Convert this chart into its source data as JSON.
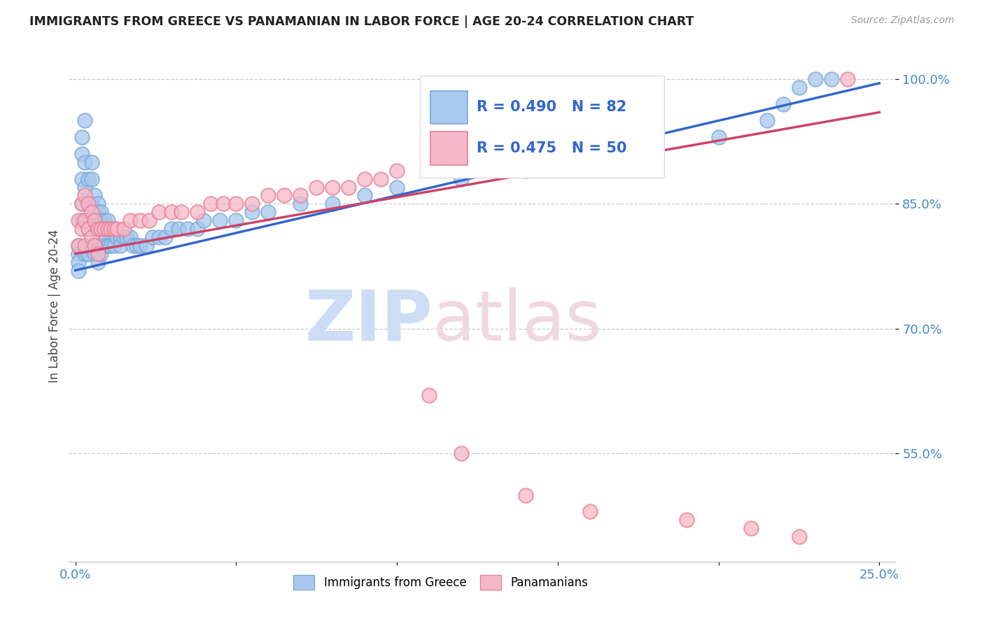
{
  "title": "IMMIGRANTS FROM GREECE VS PANAMANIAN IN LABOR FORCE | AGE 20-24 CORRELATION CHART",
  "source": "Source: ZipAtlas.com",
  "ylabel": "In Labor Force | Age 20-24",
  "xlim": [
    -0.002,
    0.255
  ],
  "ylim": [
    0.42,
    1.035
  ],
  "xticks": [
    0.0,
    0.05,
    0.1,
    0.15,
    0.2,
    0.25
  ],
  "xticklabels": [
    "0.0%",
    "",
    "",
    "",
    "",
    "25.0%"
  ],
  "yticks": [
    0.55,
    0.7,
    0.85,
    1.0
  ],
  "yticklabels": [
    "55.0%",
    "70.0%",
    "85.0%",
    "100.0%"
  ],
  "blue_color": "#A8C8EE",
  "pink_color": "#F5B8C8",
  "blue_edge": "#7AAAD8",
  "pink_edge": "#E88098",
  "line_blue": "#3366CC",
  "line_pink": "#CC4466",
  "legend_label_blue": "Immigrants from Greece",
  "legend_label_pink": "Panamanians",
  "greece_x": [
    0.001,
    0.001,
    0.001,
    0.001,
    0.002,
    0.002,
    0.002,
    0.002,
    0.002,
    0.003,
    0.003,
    0.003,
    0.003,
    0.003,
    0.004,
    0.004,
    0.004,
    0.004,
    0.005,
    0.005,
    0.005,
    0.005,
    0.005,
    0.006,
    0.006,
    0.006,
    0.006,
    0.007,
    0.007,
    0.007,
    0.007,
    0.007,
    0.008,
    0.008,
    0.008,
    0.008,
    0.009,
    0.009,
    0.009,
    0.01,
    0.01,
    0.01,
    0.011,
    0.011,
    0.012,
    0.012,
    0.013,
    0.014,
    0.014,
    0.015,
    0.016,
    0.017,
    0.018,
    0.019,
    0.02,
    0.022,
    0.024,
    0.026,
    0.028,
    0.03,
    0.032,
    0.035,
    0.038,
    0.04,
    0.045,
    0.05,
    0.055,
    0.06,
    0.07,
    0.08,
    0.09,
    0.1,
    0.12,
    0.14,
    0.16,
    0.18,
    0.2,
    0.215,
    0.22,
    0.225,
    0.23,
    0.235
  ],
  "greece_y": [
    0.8,
    0.79,
    0.78,
    0.77,
    0.93,
    0.91,
    0.88,
    0.85,
    0.83,
    0.95,
    0.9,
    0.87,
    0.83,
    0.79,
    0.88,
    0.85,
    0.82,
    0.79,
    0.9,
    0.88,
    0.85,
    0.82,
    0.8,
    0.86,
    0.84,
    0.82,
    0.79,
    0.85,
    0.84,
    0.82,
    0.8,
    0.78,
    0.84,
    0.83,
    0.81,
    0.79,
    0.83,
    0.82,
    0.8,
    0.83,
    0.82,
    0.8,
    0.82,
    0.8,
    0.82,
    0.8,
    0.81,
    0.81,
    0.8,
    0.81,
    0.81,
    0.81,
    0.8,
    0.8,
    0.8,
    0.8,
    0.81,
    0.81,
    0.81,
    0.82,
    0.82,
    0.82,
    0.82,
    0.83,
    0.83,
    0.83,
    0.84,
    0.84,
    0.85,
    0.85,
    0.86,
    0.87,
    0.88,
    0.89,
    0.9,
    0.91,
    0.93,
    0.95,
    0.97,
    0.99,
    1.0,
    1.0
  ],
  "panama_x": [
    0.001,
    0.001,
    0.002,
    0.002,
    0.003,
    0.003,
    0.003,
    0.004,
    0.004,
    0.005,
    0.005,
    0.006,
    0.006,
    0.007,
    0.007,
    0.008,
    0.009,
    0.01,
    0.011,
    0.012,
    0.013,
    0.015,
    0.017,
    0.02,
    0.023,
    0.026,
    0.03,
    0.033,
    0.038,
    0.042,
    0.046,
    0.05,
    0.055,
    0.06,
    0.065,
    0.07,
    0.075,
    0.08,
    0.085,
    0.09,
    0.095,
    0.1,
    0.11,
    0.12,
    0.14,
    0.16,
    0.19,
    0.21,
    0.225,
    0.24
  ],
  "panama_y": [
    0.83,
    0.8,
    0.85,
    0.82,
    0.86,
    0.83,
    0.8,
    0.85,
    0.82,
    0.84,
    0.81,
    0.83,
    0.8,
    0.82,
    0.79,
    0.82,
    0.82,
    0.82,
    0.82,
    0.82,
    0.82,
    0.82,
    0.83,
    0.83,
    0.83,
    0.84,
    0.84,
    0.84,
    0.84,
    0.85,
    0.85,
    0.85,
    0.85,
    0.86,
    0.86,
    0.86,
    0.87,
    0.87,
    0.87,
    0.88,
    0.88,
    0.89,
    0.62,
    0.55,
    0.5,
    0.48,
    0.47,
    0.46,
    0.45,
    1.0
  ],
  "greece_trend_x": [
    0.0,
    0.25
  ],
  "greece_trend_y": [
    0.77,
    0.995
  ],
  "panama_trend_x": [
    0.0,
    0.25
  ],
  "panama_trend_y": [
    0.79,
    0.96
  ]
}
